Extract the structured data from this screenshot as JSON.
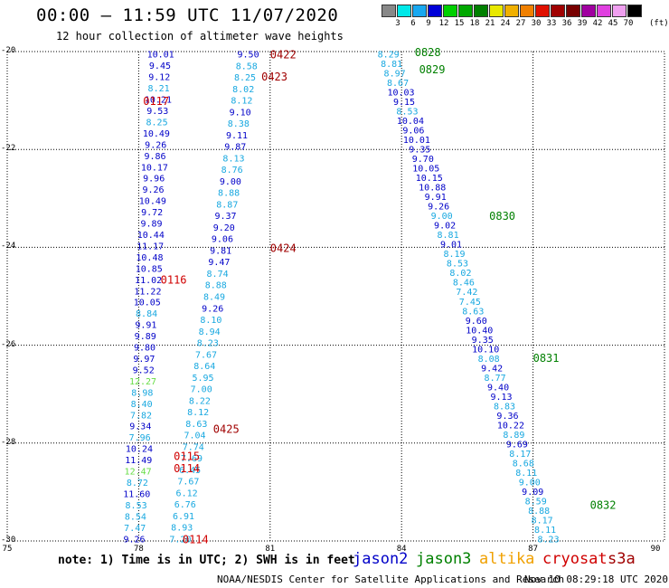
{
  "header": {
    "title": "00:00 – 11:59 UTC 11/07/2020",
    "subtitle": "12 hour collection of altimeter wave heights"
  },
  "legend": {
    "unit": "(ft)",
    "bins": [
      {
        "label": "3",
        "color": "#888888"
      },
      {
        "label": "6",
        "color": "#00e8e8"
      },
      {
        "label": "9",
        "color": "#18a8f0"
      },
      {
        "label": "12",
        "color": "#0000d8"
      },
      {
        "label": "15",
        "color": "#00d000"
      },
      {
        "label": "18",
        "color": "#00a800"
      },
      {
        "label": "21",
        "color": "#008000"
      },
      {
        "label": "24",
        "color": "#e8e800"
      },
      {
        "label": "27",
        "color": "#f0b000"
      },
      {
        "label": "30",
        "color": "#f08000"
      },
      {
        "label": "33",
        "color": "#e01000"
      },
      {
        "label": "36",
        "color": "#a00000"
      },
      {
        "label": "39",
        "color": "#780000"
      },
      {
        "label": "42",
        "color": "#a000a0"
      },
      {
        "label": "45",
        "color": "#e040e0"
      },
      {
        "label": "70",
        "color": "#f0a0f0"
      },
      {
        "label": "",
        "color": "#000000"
      }
    ]
  },
  "axes": {
    "lat_labels": [
      "-20",
      "-22",
      "-24",
      "-26",
      "-28",
      "-30"
    ],
    "lon_labels": [
      "75",
      "78",
      "81",
      "84",
      "87",
      "90"
    ]
  },
  "colors": {
    "jason2": "#0000c8",
    "jason3": "#008000",
    "altika": "#f0a000",
    "cryosat": "#d00000",
    "s3a": "#a00000",
    "cyan": "#18a8e0",
    "green_light": "#66dd44"
  },
  "tracks": [
    {
      "satellite": "jason2",
      "lon_start": 78.5,
      "lon_end": 77.9,
      "lat_start": -20.05,
      "lat_end": -29.95,
      "labels": [
        {
          "text": "10.01",
          "c": "j"
        },
        {
          "text": "9.45",
          "c": "j"
        },
        {
          "text": "9.12",
          "c": "j"
        },
        {
          "text": "8.21",
          "c": "cyan"
        },
        {
          "text": "10.21",
          "c": "j"
        },
        {
          "text": "9.53",
          "c": "j"
        },
        {
          "text": "8.25",
          "c": "cyan"
        },
        {
          "text": "10.49",
          "c": "j"
        },
        {
          "text": "9.26",
          "c": "j"
        },
        {
          "text": "9.86",
          "c": "j"
        },
        {
          "text": "10.17",
          "c": "j"
        },
        {
          "text": "9.96",
          "c": "j"
        },
        {
          "text": "9.26",
          "c": "j"
        },
        {
          "text": "10.49",
          "c": "j"
        },
        {
          "text": "9.72",
          "c": "j"
        },
        {
          "text": "9.89",
          "c": "j"
        },
        {
          "text": "10.44",
          "c": "j"
        },
        {
          "text": "11.17",
          "c": "j"
        },
        {
          "text": "10.48",
          "c": "j"
        },
        {
          "text": "10.85",
          "c": "j"
        },
        {
          "text": "11.02",
          "c": "j"
        },
        {
          "text": "11.22",
          "c": "j"
        },
        {
          "text": "10.05",
          "c": "j"
        },
        {
          "text": "8.84",
          "c": "cyan"
        },
        {
          "text": "9.91",
          "c": "j"
        },
        {
          "text": "9.89",
          "c": "j"
        },
        {
          "text": "9.80",
          "c": "j"
        },
        {
          "text": "9.97",
          "c": "j"
        },
        {
          "text": "9.52",
          "c": "j"
        },
        {
          "text": "12.27",
          "c": "lg"
        },
        {
          "text": "8.98",
          "c": "cyan"
        },
        {
          "text": "8.40",
          "c": "cyan"
        },
        {
          "text": "7.82",
          "c": "cyan"
        },
        {
          "text": "9.34",
          "c": "j"
        },
        {
          "text": "7.96",
          "c": "cyan"
        },
        {
          "text": "10.24",
          "c": "j"
        },
        {
          "text": "11.49",
          "c": "j"
        },
        {
          "text": "12.47",
          "c": "lg"
        },
        {
          "text": "8.72",
          "c": "cyan"
        },
        {
          "text": "11.60",
          "c": "j"
        },
        {
          "text": "8.53",
          "c": "cyan"
        },
        {
          "text": "8.54",
          "c": "cyan"
        },
        {
          "text": "7.47",
          "c": "cyan"
        },
        {
          "text": "9.26",
          "c": "j"
        }
      ]
    },
    {
      "satellite": "jason2",
      "lon_start": 80.5,
      "lon_end": 78.95,
      "lat_start": -20.05,
      "lat_end": -29.95,
      "labels": [
        {
          "text": "9.50",
          "c": "j"
        },
        {
          "text": "8.58",
          "c": "cyan"
        },
        {
          "text": "8.25",
          "c": "cyan"
        },
        {
          "text": "8.02",
          "c": "cyan"
        },
        {
          "text": "8.12",
          "c": "cyan"
        },
        {
          "text": "9.10",
          "c": "j"
        },
        {
          "text": "8.38",
          "c": "cyan"
        },
        {
          "text": "9.11",
          "c": "j"
        },
        {
          "text": "9.87",
          "c": "j"
        },
        {
          "text": "8.13",
          "c": "cyan"
        },
        {
          "text": "8.76",
          "c": "cyan"
        },
        {
          "text": "9.00",
          "c": "j"
        },
        {
          "text": "8.88",
          "c": "cyan"
        },
        {
          "text": "8.87",
          "c": "cyan"
        },
        {
          "text": "9.37",
          "c": "j"
        },
        {
          "text": "9.20",
          "c": "j"
        },
        {
          "text": "9.06",
          "c": "j"
        },
        {
          "text": "9.81",
          "c": "j"
        },
        {
          "text": "9.47",
          "c": "j"
        },
        {
          "text": "8.74",
          "c": "cyan"
        },
        {
          "text": "8.88",
          "c": "cyan"
        },
        {
          "text": "8.49",
          "c": "cyan"
        },
        {
          "text": "9.26",
          "c": "j"
        },
        {
          "text": "8.10",
          "c": "cyan"
        },
        {
          "text": "8.94",
          "c": "cyan"
        },
        {
          "text": "8.23",
          "c": "cyan"
        },
        {
          "text": "7.67",
          "c": "cyan"
        },
        {
          "text": "8.64",
          "c": "cyan"
        },
        {
          "text": "5.95",
          "c": "cyan"
        },
        {
          "text": "7.00",
          "c": "cyan"
        },
        {
          "text": "8.22",
          "c": "cyan"
        },
        {
          "text": "8.12",
          "c": "cyan"
        },
        {
          "text": "8.63",
          "c": "cyan"
        },
        {
          "text": "7.04",
          "c": "cyan"
        },
        {
          "text": "7.74",
          "c": "cyan"
        },
        {
          "text": "7.69",
          "c": "cyan"
        },
        {
          "text": "6.45",
          "c": "cyan"
        },
        {
          "text": "7.67",
          "c": "cyan"
        },
        {
          "text": "6.12",
          "c": "cyan"
        },
        {
          "text": "6.76",
          "c": "cyan"
        },
        {
          "text": "6.91",
          "c": "cyan"
        },
        {
          "text": "8.93",
          "c": "cyan"
        },
        {
          "text": "7.20",
          "c": "cyan"
        }
      ]
    },
    {
      "satellite": "jason2",
      "lon_start": 83.7,
      "lon_end": 87.35,
      "lat_start": -20.05,
      "lat_end": -29.95,
      "labels": [
        {
          "text": "8.29",
          "c": "cyan"
        },
        {
          "text": "8.81",
          "c": "cyan"
        },
        {
          "text": "8.97",
          "c": "cyan"
        },
        {
          "text": "8.67",
          "c": "cyan"
        },
        {
          "text": "10.03",
          "c": "j"
        },
        {
          "text": "9.15",
          "c": "j"
        },
        {
          "text": "8.53",
          "c": "cyan"
        },
        {
          "text": "10.04",
          "c": "j"
        },
        {
          "text": "9.06",
          "c": "j"
        },
        {
          "text": "10.01",
          "c": "j"
        },
        {
          "text": "9.35",
          "c": "j"
        },
        {
          "text": "9.70",
          "c": "j"
        },
        {
          "text": "10.05",
          "c": "j"
        },
        {
          "text": "10.15",
          "c": "j"
        },
        {
          "text": "10.88",
          "c": "j"
        },
        {
          "text": "9.91",
          "c": "j"
        },
        {
          "text": "9.26",
          "c": "j"
        },
        {
          "text": "9.00",
          "c": "cyan"
        },
        {
          "text": "9.02",
          "c": "j"
        },
        {
          "text": "8.81",
          "c": "cyan"
        },
        {
          "text": "9.01",
          "c": "j"
        },
        {
          "text": "8.19",
          "c": "cyan"
        },
        {
          "text": "8.53",
          "c": "cyan"
        },
        {
          "text": "8.02",
          "c": "cyan"
        },
        {
          "text": "8.46",
          "c": "cyan"
        },
        {
          "text": "7.42",
          "c": "cyan"
        },
        {
          "text": "7.45",
          "c": "cyan"
        },
        {
          "text": "8.63",
          "c": "cyan"
        },
        {
          "text": "9.60",
          "c": "j"
        },
        {
          "text": "10.40",
          "c": "j"
        },
        {
          "text": "9.35",
          "c": "j"
        },
        {
          "text": "10.10",
          "c": "j"
        },
        {
          "text": "8.08",
          "c": "cyan"
        },
        {
          "text": "9.42",
          "c": "j"
        },
        {
          "text": "8.77",
          "c": "cyan"
        },
        {
          "text": "9.40",
          "c": "j"
        },
        {
          "text": "9.13",
          "c": "j"
        },
        {
          "text": "8.83",
          "c": "cyan"
        },
        {
          "text": "9.36",
          "c": "j"
        },
        {
          "text": "10.22",
          "c": "j"
        },
        {
          "text": "8.89",
          "c": "cyan"
        },
        {
          "text": "9.69",
          "c": "j"
        },
        {
          "text": "8.17",
          "c": "cyan"
        },
        {
          "text": "8.68",
          "c": "cyan"
        },
        {
          "text": "8.11",
          "c": "cyan"
        },
        {
          "text": "9.00",
          "c": "cyan"
        },
        {
          "text": "9.09",
          "c": "j"
        },
        {
          "text": "8.59",
          "c": "cyan"
        },
        {
          "text": "8.88",
          "c": "cyan"
        },
        {
          "text": "8.17",
          "c": "cyan"
        },
        {
          "text": "8.11",
          "c": "cyan"
        },
        {
          "text": "8.23",
          "c": "cyan"
        }
      ]
    }
  ],
  "time_labels": [
    {
      "text": "0422",
      "color": "#a00000",
      "lon": 81.0,
      "lat": -20.05
    },
    {
      "text": "0423",
      "color": "#a00000",
      "lon": 80.8,
      "lat": -20.5
    },
    {
      "text": "0828",
      "color": "#008000",
      "lon": 84.3,
      "lat": -20.0
    },
    {
      "text": "0829",
      "color": "#008000",
      "lon": 84.4,
      "lat": -20.35
    },
    {
      "text": "0117",
      "color": "#d00000",
      "lon": 78.1,
      "lat": -21.0
    },
    {
      "text": "0830",
      "color": "#008000",
      "lon": 86.0,
      "lat": -23.35
    },
    {
      "text": "0424",
      "color": "#a00000",
      "lon": 81.0,
      "lat": -24.0
    },
    {
      "text": "0116",
      "color": "#d00000",
      "lon": 78.5,
      "lat": -24.65
    },
    {
      "text": "0831",
      "color": "#008000",
      "lon": 87.0,
      "lat": -26.25
    },
    {
      "text": "0425",
      "color": "#a00000",
      "lon": 79.7,
      "lat": -27.7
    },
    {
      "text": "0115",
      "color": "#d00000",
      "lon": 78.8,
      "lat": -28.25
    },
    {
      "text": "0114",
      "color": "#d00000",
      "lon": 78.8,
      "lat": -28.5
    },
    {
      "text": "0832",
      "color": "#008000",
      "lon": 88.3,
      "lat": -29.25
    },
    {
      "text": "0114",
      "color": "#d00000",
      "lon": 79.0,
      "lat": -29.95
    }
  ],
  "footer": {
    "note": "note: 1) Time is in UTC; 2) SWH is in feet",
    "sat_jason2": "jason2",
    "sat_jason3": "jason3",
    "sat_altika": "altika",
    "sat_cryosat": "cryosat",
    "sat_s3a": "s3a",
    "credit": "NOAA/NESDIS Center for Satellite Applications and Research",
    "generated": "Nov 10 08:29:18 UTC 2020"
  }
}
